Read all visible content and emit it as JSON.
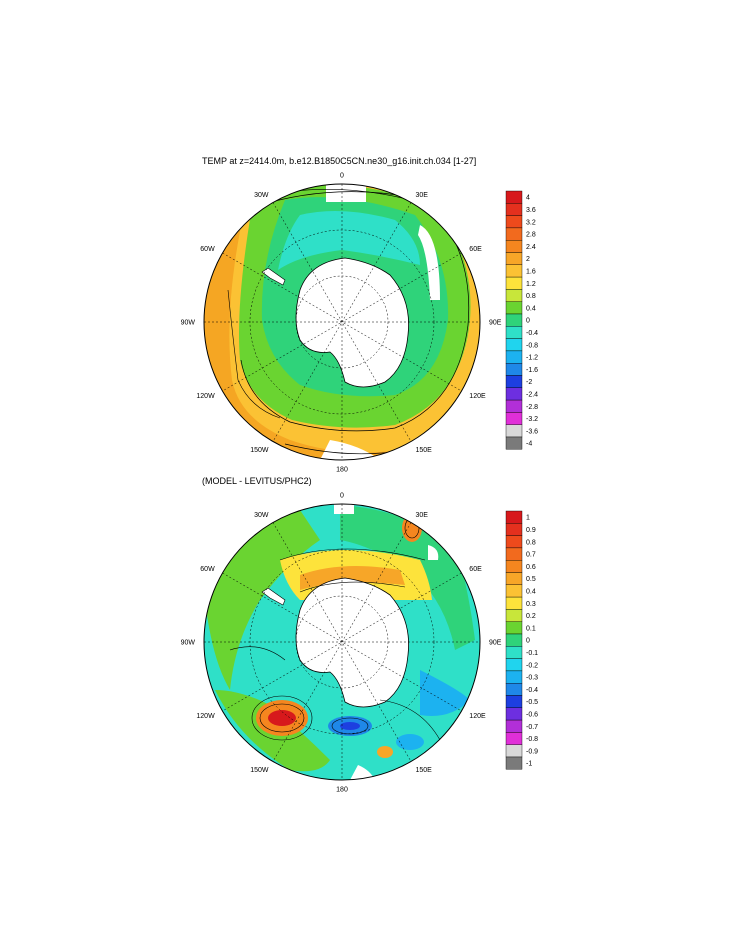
{
  "panel1": {
    "title": "TEMP at z=2414.0m, b.e12.B1850C5CN.ne30_g16.init.ch.034 [1-27]",
    "lon_labels": [
      "0",
      "30E",
      "60E",
      "90E",
      "120E",
      "150E",
      "180",
      "150W",
      "120W",
      "90W",
      "60W",
      "30W"
    ],
    "colorbar": {
      "labels": [
        "4",
        "3.6",
        "3.2",
        "2.8",
        "2.4",
        "2",
        "1.6",
        "1.2",
        "0.8",
        "0.4",
        "0",
        "-0.4",
        "-0.8",
        "-1.2",
        "-1.6",
        "-2",
        "-2.4",
        "-2.8",
        "-3.2",
        "-3.6",
        "-4"
      ],
      "colors": [
        "#d7191c",
        "#e4301e",
        "#ee4a1c",
        "#f26a1e",
        "#f5861f",
        "#f7a628",
        "#fbc234",
        "#fde33b",
        "#c8e63a",
        "#6ad431",
        "#2fd37a",
        "#2fe0c8",
        "#20d4ee",
        "#1cb2f0",
        "#1f88e8",
        "#1d3fe0",
        "#6d2fe0",
        "#b22fd8",
        "#e02fd8",
        "#d8d8d8",
        "#7a7a7a"
      ]
    }
  },
  "panel2": {
    "title": "(MODEL - LEVITUS/PHC2)",
    "lon_labels": [
      "0",
      "30E",
      "60E",
      "90E",
      "120E",
      "150E",
      "180",
      "150W",
      "120W",
      "90W",
      "60W",
      "30W"
    ],
    "colorbar": {
      "labels": [
        "1",
        "0.9",
        "0.8",
        "0.7",
        "0.6",
        "0.5",
        "0.4",
        "0.3",
        "0.2",
        "0.1",
        "0",
        "-0.1",
        "-0.2",
        "-0.3",
        "-0.4",
        "-0.5",
        "-0.6",
        "-0.7",
        "-0.8",
        "-0.9",
        "-1"
      ],
      "colors": [
        "#d7191c",
        "#e4301e",
        "#ee4a1c",
        "#f26a1e",
        "#f5861f",
        "#f7a628",
        "#fbc234",
        "#fde33b",
        "#c8e63a",
        "#6ad431",
        "#2fd37a",
        "#2fe0c8",
        "#20d4ee",
        "#1cb2f0",
        "#1f88e8",
        "#1d3fe0",
        "#6d2fe0",
        "#b22fd8",
        "#e02fd8",
        "#d8d8d8",
        "#7a7a7a"
      ]
    }
  }
}
